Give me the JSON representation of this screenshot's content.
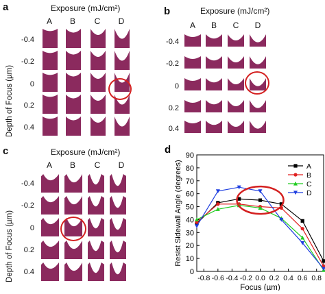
{
  "panel_a": {
    "label": "a",
    "title": "Exposure (mJ/cm²)",
    "columns": [
      "A",
      "B",
      "C",
      "D"
    ],
    "rows": [
      "-0.4",
      "-0.2",
      "0",
      "0.2",
      "0.4"
    ],
    "ylabel": "Depth of Focus (µm)"
  },
  "panel_b": {
    "label": "b",
    "title": "Exposure (mJ/cm²)",
    "columns": [
      "A",
      "B",
      "C",
      "D"
    ],
    "rows": [
      "-0.4",
      "-0.2",
      "0",
      "0.2",
      "0.4"
    ]
  },
  "panel_c": {
    "label": "c",
    "title": "Exposure (mJ/cm²)",
    "columns": [
      "A",
      "B",
      "C",
      "D"
    ],
    "rows": [
      "-0.4",
      "-0.2",
      "0",
      "0.2",
      "0.4"
    ],
    "ylabel": "Depth of Focus (µm)"
  },
  "colors": {
    "resist": "#8b2a5e",
    "highlight": "#d42020"
  },
  "chart_data": {
    "type": "line",
    "panel_label": "d",
    "xlabel": "Focus (µm)",
    "ylabel": "Resist Sidewall Angle (degrees)",
    "xlim": [
      -0.9,
      0.9
    ],
    "ylim": [
      0,
      90
    ],
    "xticks": [
      "-0.8",
      "-0.6",
      "-0.4",
      "-0.2",
      "0.0",
      "0.2",
      "0.4",
      "0.6",
      "0.8"
    ],
    "yticks": [
      "0",
      "10",
      "20",
      "30",
      "40",
      "50",
      "60",
      "70",
      "80",
      "90"
    ],
    "legend_position": "top-right",
    "x": [
      -0.9,
      -0.6,
      -0.3,
      0.0,
      0.3,
      0.6,
      0.9
    ],
    "series": [
      {
        "name": "A",
        "color": "#000000",
        "marker": "square",
        "values": [
          37,
          53,
          56,
          55,
          52,
          39,
          8
        ]
      },
      {
        "name": "B",
        "color": "#e02020",
        "marker": "circle",
        "values": [
          38,
          52,
          52,
          50,
          49,
          33,
          4
        ]
      },
      {
        "name": "C",
        "color": "#22cc22",
        "marker": "triangle-up",
        "values": [
          40,
          48,
          51,
          49,
          41,
          26,
          1
        ]
      },
      {
        "name": "D",
        "color": "#1f3fe0",
        "marker": "triangle-down",
        "values": [
          35,
          62,
          65,
          62,
          40,
          22,
          2
        ]
      }
    ]
  }
}
